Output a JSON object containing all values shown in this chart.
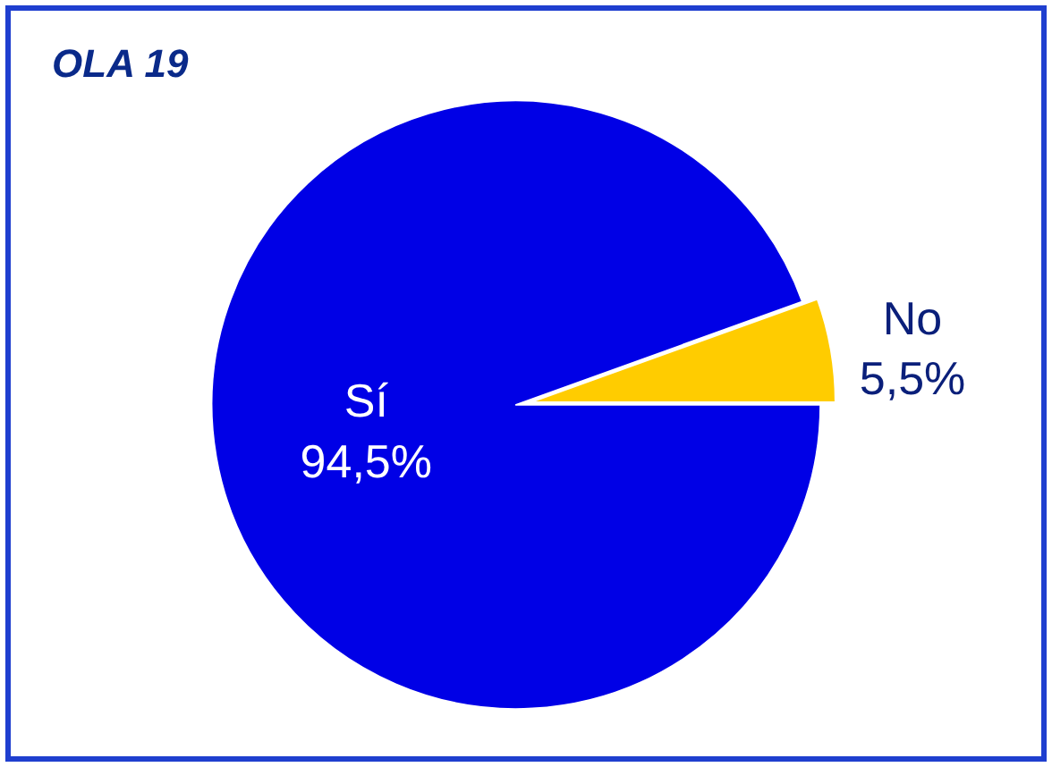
{
  "chart_data": {
    "type": "pie",
    "title": "OLA 19",
    "categories": [
      "Sí",
      "No"
    ],
    "values": [
      94.5,
      5.5
    ],
    "colors": [
      "#0000e6",
      "#ffcc00"
    ],
    "value_labels": [
      "94,5%",
      "5,5%"
    ],
    "legend": false
  }
}
